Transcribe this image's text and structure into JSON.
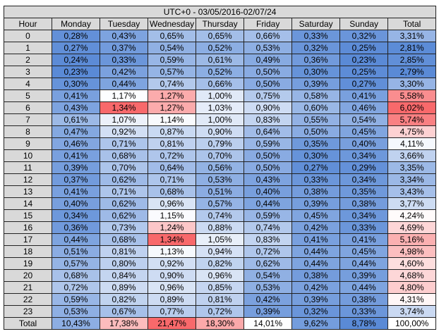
{
  "title": "UTC+0 - 03/05/2016-02/07/24",
  "header": [
    "Hour",
    "Monday",
    "Tuesday",
    "Wednesday",
    "Thursday",
    "Friday",
    "Saturday",
    "Sunday",
    "Total"
  ],
  "rows": [
    [
      "0",
      "0,28%",
      "0,43%",
      "0,65%",
      "0,65%",
      "0,66%",
      "0,33%",
      "0,32%",
      "3,31%"
    ],
    [
      "1",
      "0,27%",
      "0,37%",
      "0,54%",
      "0,52%",
      "0,53%",
      "0,32%",
      "0,25%",
      "2,81%"
    ],
    [
      "2",
      "0,24%",
      "0,33%",
      "0,59%",
      "0,61%",
      "0,49%",
      "0,36%",
      "0,23%",
      "2,85%"
    ],
    [
      "3",
      "0,23%",
      "0,42%",
      "0,57%",
      "0,52%",
      "0,50%",
      "0,30%",
      "0,25%",
      "2,79%"
    ],
    [
      "4",
      "0,30%",
      "0,44%",
      "0,74%",
      "0,66%",
      "0,50%",
      "0,39%",
      "0,27%",
      "3,30%"
    ],
    [
      "5",
      "0,41%",
      "1,17%",
      "1,27%",
      "1,00%",
      "0,75%",
      "0,58%",
      "0,41%",
      "5,58%"
    ],
    [
      "6",
      "0,43%",
      "1,34%",
      "1,27%",
      "1,03%",
      "0,90%",
      "0,60%",
      "0,46%",
      "6,02%"
    ],
    [
      "7",
      "0,61%",
      "1,07%",
      "1,14%",
      "1,00%",
      "0,83%",
      "0,55%",
      "0,54%",
      "5,74%"
    ],
    [
      "8",
      "0,47%",
      "0,92%",
      "0,87%",
      "0,90%",
      "0,64%",
      "0,50%",
      "0,45%",
      "4,75%"
    ],
    [
      "9",
      "0,46%",
      "0,71%",
      "0,81%",
      "0,79%",
      "0,59%",
      "0,35%",
      "0,40%",
      "4,11%"
    ],
    [
      "10",
      "0,41%",
      "0,68%",
      "0,72%",
      "0,70%",
      "0,50%",
      "0,30%",
      "0,34%",
      "3,66%"
    ],
    [
      "11",
      "0,39%",
      "0,70%",
      "0,64%",
      "0,56%",
      "0,50%",
      "0,27%",
      "0,29%",
      "3,35%"
    ],
    [
      "12",
      "0,37%",
      "0,62%",
      "0,71%",
      "0,53%",
      "0,43%",
      "0,33%",
      "0,34%",
      "3,34%"
    ],
    [
      "13",
      "0,41%",
      "0,71%",
      "0,68%",
      "0,51%",
      "0,40%",
      "0,38%",
      "0,35%",
      "3,43%"
    ],
    [
      "14",
      "0,40%",
      "0,62%",
      "0,96%",
      "0,57%",
      "0,44%",
      "0,39%",
      "0,38%",
      "3,77%"
    ],
    [
      "15",
      "0,34%",
      "0,62%",
      "1,15%",
      "0,74%",
      "0,59%",
      "0,45%",
      "0,34%",
      "4,24%"
    ],
    [
      "16",
      "0,36%",
      "0,73%",
      "1,24%",
      "0,88%",
      "0,74%",
      "0,42%",
      "0,33%",
      "4,69%"
    ],
    [
      "17",
      "0,44%",
      "0,68%",
      "1,34%",
      "1,05%",
      "0,83%",
      "0,41%",
      "0,41%",
      "5,16%"
    ],
    [
      "18",
      "0,51%",
      "0,81%",
      "1,13%",
      "0,94%",
      "0,72%",
      "0,44%",
      "0,45%",
      "4,98%"
    ],
    [
      "19",
      "0,57%",
      "0,80%",
      "0,92%",
      "0,82%",
      "0,62%",
      "0,44%",
      "0,44%",
      "4,60%"
    ],
    [
      "20",
      "0,68%",
      "0,84%",
      "0,90%",
      "0,96%",
      "0,54%",
      "0,38%",
      "0,39%",
      "4,68%"
    ],
    [
      "21",
      "0,72%",
      "0,89%",
      "0,96%",
      "0,85%",
      "0,53%",
      "0,42%",
      "0,44%",
      "4,80%"
    ],
    [
      "22",
      "0,59%",
      "0,82%",
      "0,89%",
      "0,81%",
      "0,42%",
      "0,39%",
      "0,38%",
      "4,31%"
    ],
    [
      "23",
      "0,53%",
      "0,67%",
      "0,77%",
      "0,72%",
      "0,39%",
      "0,32%",
      "0,33%",
      "3,74%"
    ]
  ],
  "total": [
    "Total",
    "10,43%",
    "17,38%",
    "21,47%",
    "18,30%",
    "14,01%",
    "9,62%",
    "8,78%",
    "100,00%"
  ]
}
